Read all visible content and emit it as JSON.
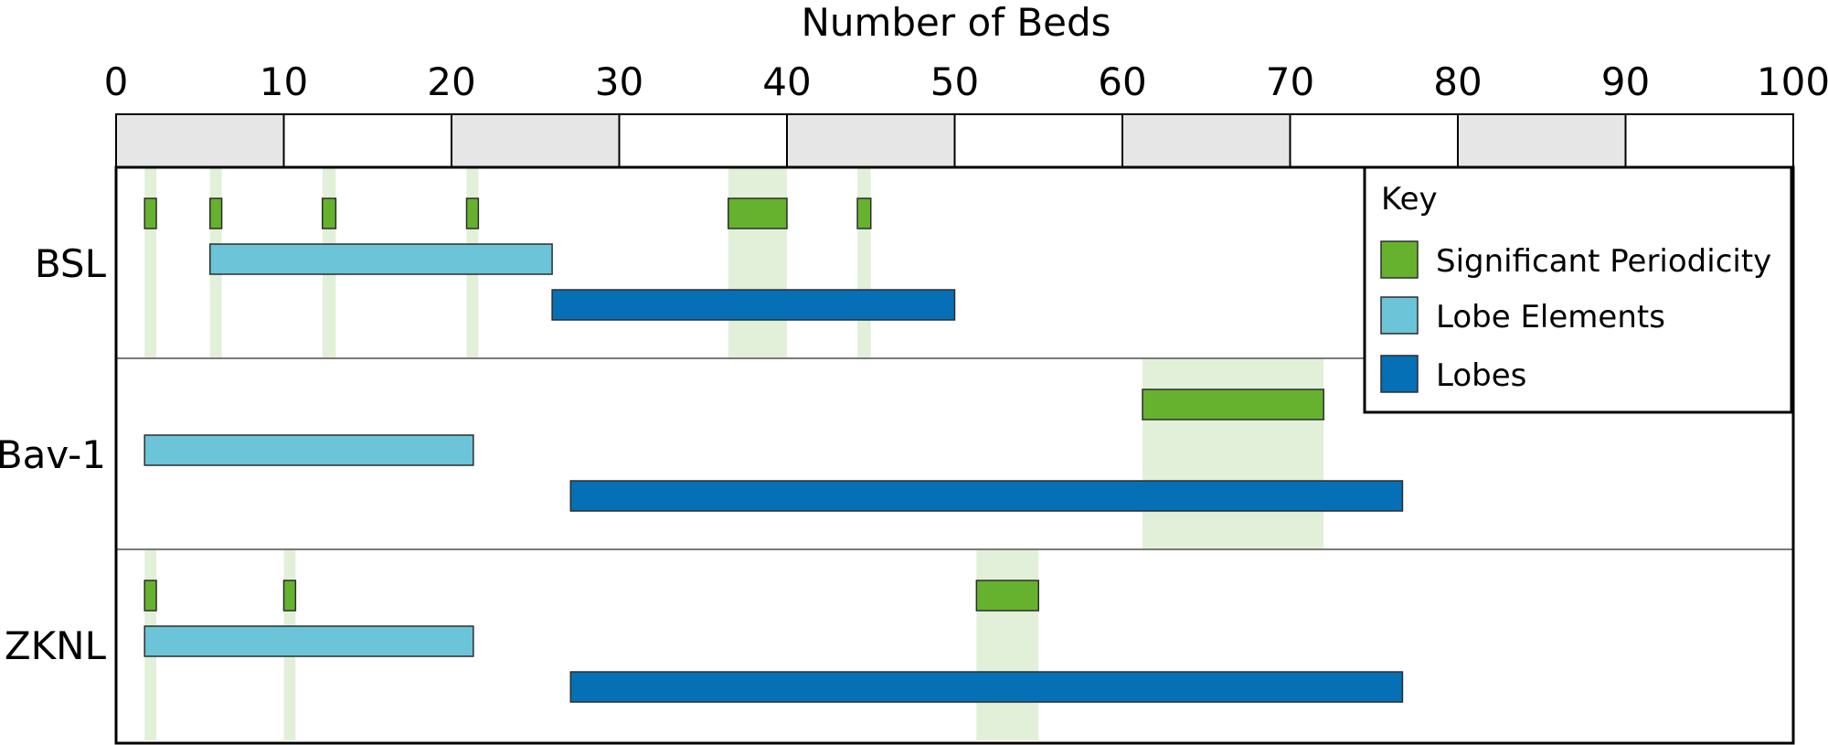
{
  "chart_data": {
    "type": "bar",
    "subtype": "range",
    "xlabel": "Number of Beds",
    "xlim": [
      0,
      100
    ],
    "x_ticks": [
      "0",
      "10",
      "20",
      "30",
      "40",
      "50",
      "60",
      "70",
      "80",
      "90",
      "100"
    ],
    "grid": false,
    "legend": {
      "title": "Key",
      "position": "top-right",
      "entries": [
        {
          "name": "Significant Periodicity",
          "color": "#66b22f"
        },
        {
          "name": "Lobe Elements",
          "color": "#6cc4d8"
        },
        {
          "name": "Lobes",
          "color": "#0570b5"
        }
      ]
    },
    "colors": {
      "significant_periodicity": "#66b22f",
      "periodicity_band": "#e2f0d9",
      "lobe_elements": "#6cc4d8",
      "lobes": "#0570b5",
      "scale_shade": "#e6e6e6"
    },
    "categories": [
      "BSL",
      "Bav-1",
      "ZKNL"
    ],
    "rows": [
      {
        "label": "BSL",
        "significant_periodicity": [
          [
            1.7,
            2.4
          ],
          [
            5.6,
            6.3
          ],
          [
            12.3,
            13.1
          ],
          [
            20.9,
            21.6
          ],
          [
            36.5,
            40.0
          ],
          [
            44.2,
            45.0
          ]
        ],
        "lobe_elements": [
          [
            5.6,
            26.0
          ]
        ],
        "lobes": [
          [
            26.0,
            50.0
          ]
        ]
      },
      {
        "label": "Bav-1",
        "significant_periodicity": [
          [
            61.2,
            72.0
          ]
        ],
        "lobe_elements": [
          [
            1.7,
            21.3
          ]
        ],
        "lobes": [
          [
            27.1,
            76.7
          ]
        ]
      },
      {
        "label": "ZKNL",
        "significant_periodicity": [
          [
            1.7,
            2.4
          ],
          [
            10.0,
            10.7
          ],
          [
            51.3,
            55.0
          ]
        ],
        "lobe_elements": [
          [
            1.7,
            21.3
          ]
        ],
        "lobes": [
          [
            27.1,
            76.7
          ]
        ]
      }
    ]
  }
}
